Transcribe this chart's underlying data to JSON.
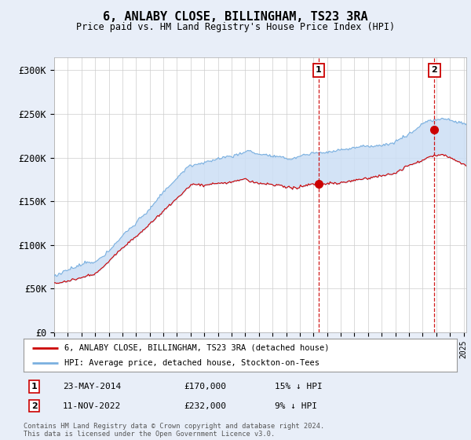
{
  "title": "6, ANLABY CLOSE, BILLINGHAM, TS23 3RA",
  "subtitle": "Price paid vs. HM Land Registry's House Price Index (HPI)",
  "ylabel_ticks": [
    "£0",
    "£50K",
    "£100K",
    "£150K",
    "£200K",
    "£250K",
    "£300K"
  ],
  "ytick_values": [
    0,
    50000,
    100000,
    150000,
    200000,
    250000,
    300000
  ],
  "ylim": [
    0,
    315000
  ],
  "xlim_start": 1995.0,
  "xlim_end": 2025.2,
  "hpi_color": "#7ab0e0",
  "hpi_fill_color": "#ccdff5",
  "price_color": "#cc0000",
  "sale1_date_label": "23-MAY-2014",
  "sale1_price": 170000,
  "sale1_pct": "15% ↓ HPI",
  "sale1_year": 2014.38,
  "sale2_date_label": "11-NOV-2022",
  "sale2_price": 232000,
  "sale2_pct": "9% ↓ HPI",
  "sale2_year": 2022.86,
  "legend_label1": "6, ANLABY CLOSE, BILLINGHAM, TS23 3RA (detached house)",
  "legend_label2": "HPI: Average price, detached house, Stockton-on-Tees",
  "footnote": "Contains HM Land Registry data © Crown copyright and database right 2024.\nThis data is licensed under the Open Government Licence v3.0.",
  "background_color": "#e8eef8",
  "plot_bg_color": "#ffffff",
  "grid_color": "#cccccc",
  "vline_color": "#cc0000",
  "marker_color": "#cc0000",
  "box_label1": "1",
  "box_label2": "2"
}
